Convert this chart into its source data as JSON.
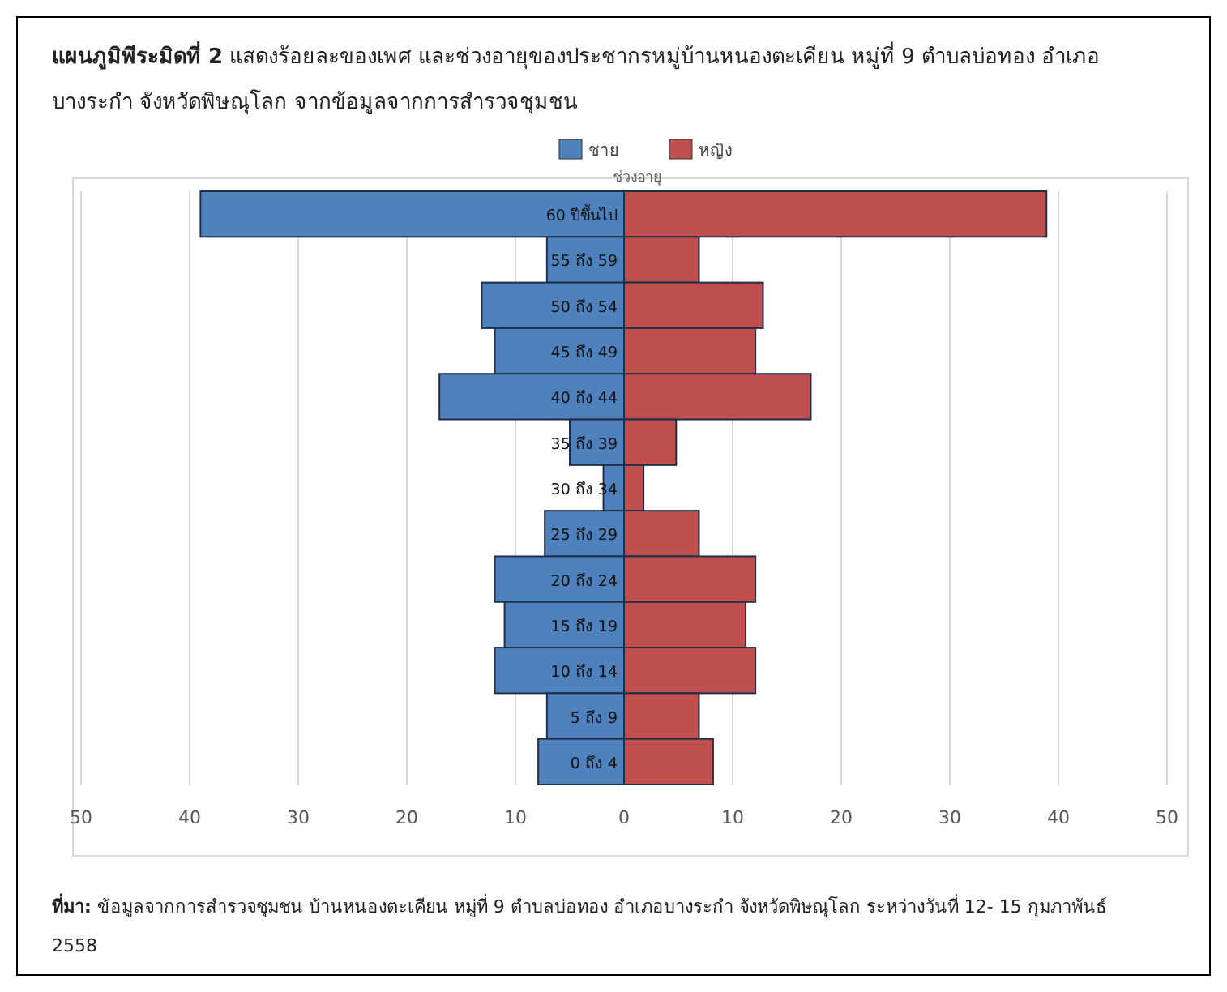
{
  "chart_data": {
    "type": "bar",
    "orientation": "horizontal",
    "title": "**แผนภูมิพีระมิดที่ 2** แสดงร้อยละของเพศ และช่วงอายุของประชากรหมู่บ้านหนองตะเคียน หมู่ที่ 9 ตำบลบ่อทอง อำเภอบางระกำ จังหวัดพิษณุโลก จากข้อมูลจากการสำรวจชุมชน",
    "ylabel": "ช่วงอายุ",
    "categories": [
      "60 ปีขึ้นไป",
      "55 ถึง 59",
      "50 ถึง 54",
      "45 ถึง 49",
      "40 ถึง 44",
      "35 ถึง 39",
      "30 ถึง 34",
      "25 ถึง 29",
      "20 ถึง 24",
      "15 ถึง 19",
      "10 ถึง 14",
      "5 ถึง 9",
      "0 ถึง 4"
    ],
    "series": [
      {
        "name": "ชาย",
        "color": "#4f81bd",
        "values": [
          -39,
          -7.1,
          -13.1,
          -11.9,
          -17,
          -5,
          -1.9,
          -7.3,
          -11.9,
          -11,
          -11.9,
          -7.1,
          -7.9
        ]
      },
      {
        "name": "หญิง",
        "color": "#c0504d",
        "values": [
          38.9,
          6.9,
          12.8,
          12.1,
          17.2,
          4.8,
          1.8,
          6.9,
          12.1,
          11.2,
          12.1,
          6.9,
          8.2
        ]
      }
    ],
    "xlim": [
      -50,
      50
    ],
    "xticks": [
      {
        "value": -50,
        "label": "50"
      },
      {
        "value": -40,
        "label": "40"
      },
      {
        "value": -30,
        "label": "30"
      },
      {
        "value": -20,
        "label": "20"
      },
      {
        "value": -10,
        "label": "10"
      },
      0,
      10,
      20,
      30,
      40,
      50
    ],
    "grid": "x",
    "legend": "top",
    "stacked": true,
    "annotations": [
      "**ที่มา:** ข้อมูลจากการสำรวจชุมชน บ้านหนองตะเคียน หมู่ที่ 9 ตำบลบ่อทอง อำเภอบางระกำ จังหวัดพิษณุโลก ระหว่างวันที่ 12- 15 กุมภาพันธ์ 2558"
    ]
  }
}
